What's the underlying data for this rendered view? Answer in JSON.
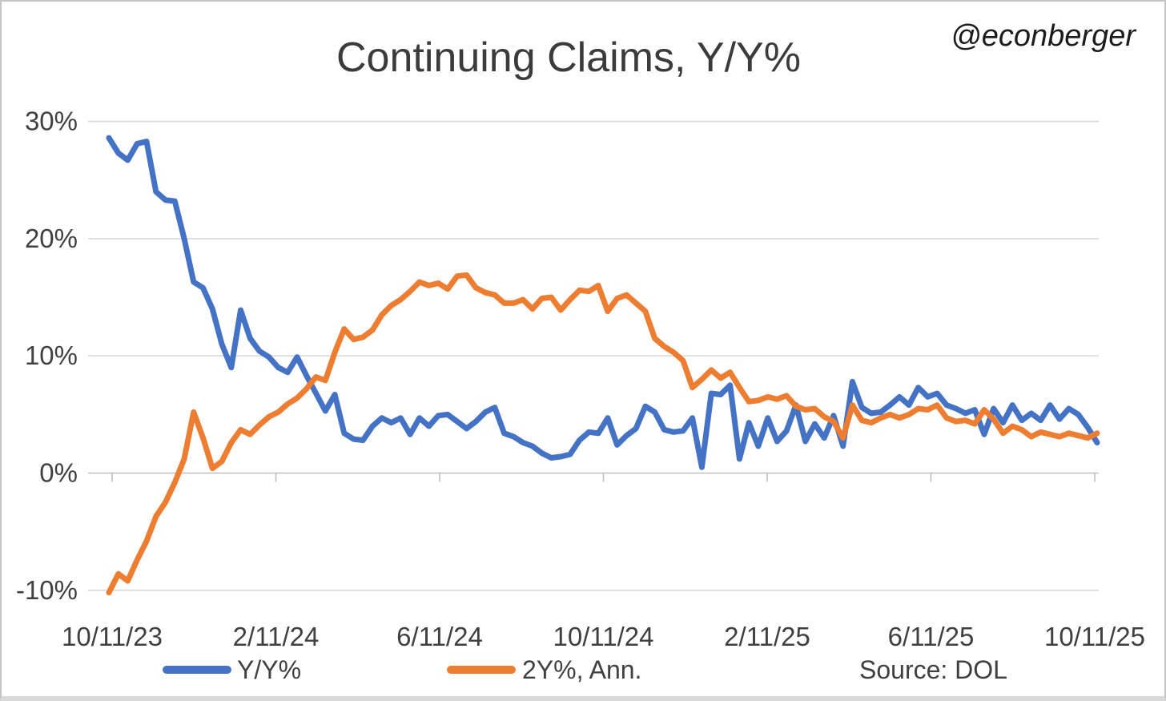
{
  "title": "Continuing Claims, Y/Y%",
  "watermark": "@econberger",
  "source_note": "Source: DOL",
  "colors": {
    "series_yy": "#4472C4",
    "series_2y": "#ED7D31",
    "gridline": "#D9D9D9",
    "zero_axis": "#BFBFBF",
    "text": "#404040",
    "title_text": "#3B3B3B",
    "background": "#FFFFFF",
    "frame_border": "#C6C5C4"
  },
  "chart_data": {
    "type": "line",
    "title": "Continuing Claims, Y/Y%",
    "xlabel": "",
    "ylabel": "",
    "x_unit": "weekly observations from 10/11/23 to 10/11/25",
    "x_axis": {
      "tick_labels": [
        "10/11/23",
        "2/11/24",
        "6/11/24",
        "10/11/24",
        "2/11/25",
        "6/11/25",
        "10/11/25"
      ]
    },
    "y_axis": {
      "tick_labels": [
        "30%",
        "20%",
        "10%",
        "0%",
        "-10%"
      ],
      "tick_values": [
        30,
        20,
        10,
        0,
        -10
      ],
      "ylim": [
        -10,
        30
      ],
      "format": "percent"
    },
    "grid": "horizontal",
    "legend_position": "bottom",
    "series": [
      {
        "name": "Y/Y%",
        "color": "#4472C4",
        "values": [
          28.6,
          27.3,
          26.7,
          28.1,
          28.3,
          24.0,
          23.3,
          23.2,
          20.0,
          16.3,
          15.8,
          14.0,
          11.0,
          9.0,
          13.9,
          11.5,
          10.4,
          9.9,
          9.0,
          8.6,
          9.9,
          8.3,
          6.8,
          5.3,
          6.7,
          3.4,
          2.9,
          2.8,
          4.0,
          4.7,
          4.3,
          4.7,
          3.3,
          4.7,
          4.0,
          4.9,
          5.0,
          4.4,
          3.8,
          4.4,
          5.2,
          5.6,
          3.4,
          3.1,
          2.6,
          2.3,
          1.7,
          1.3,
          1.4,
          1.6,
          2.8,
          3.5,
          3.4,
          4.7,
          2.4,
          3.2,
          3.8,
          5.7,
          5.2,
          3.7,
          3.5,
          3.6,
          4.7,
          0.5,
          6.8,
          6.7,
          7.5,
          1.2,
          4.3,
          2.3,
          4.7,
          2.7,
          3.6,
          5.8,
          2.7,
          4.2,
          3.0,
          4.9,
          2.3,
          7.8,
          5.6,
          5.1,
          5.2,
          5.8,
          6.5,
          5.8,
          7.3,
          6.5,
          6.8,
          5.8,
          5.5,
          5.1,
          5.4,
          3.3,
          5.5,
          4.3,
          5.8,
          4.5,
          5.1,
          4.5,
          5.8,
          4.6,
          5.5,
          5.0,
          3.9,
          2.6
        ]
      },
      {
        "name": "2Y%, Ann.",
        "color": "#ED7D31",
        "values": [
          -10.2,
          -8.6,
          -9.2,
          -7.4,
          -5.8,
          -3.7,
          -2.5,
          -0.8,
          1.2,
          5.2,
          3.0,
          0.4,
          1.0,
          2.6,
          3.7,
          3.3,
          4.1,
          4.8,
          5.2,
          5.9,
          6.4,
          7.2,
          8.2,
          7.9,
          10.3,
          12.3,
          11.4,
          11.6,
          12.2,
          13.5,
          14.3,
          14.8,
          15.5,
          16.3,
          16.0,
          16.2,
          15.7,
          16.8,
          16.9,
          15.8,
          15.4,
          15.2,
          14.5,
          14.5,
          14.8,
          14.0,
          14.9,
          15.0,
          13.9,
          14.8,
          15.6,
          15.5,
          16.0,
          13.8,
          14.9,
          15.2,
          14.5,
          13.8,
          11.5,
          10.8,
          10.3,
          9.6,
          7.3,
          8.0,
          8.8,
          8.1,
          8.6,
          7.3,
          6.1,
          6.2,
          6.5,
          6.3,
          6.6,
          5.7,
          5.4,
          5.5,
          4.8,
          4.4,
          3.0,
          5.8,
          4.5,
          4.3,
          4.7,
          5.0,
          4.7,
          5.0,
          5.5,
          5.4,
          5.8,
          4.7,
          4.4,
          4.5,
          4.2,
          5.4,
          4.6,
          3.4,
          4.0,
          3.7,
          3.1,
          3.5,
          3.3,
          3.1,
          3.4,
          3.2,
          3.0,
          3.4
        ]
      }
    ]
  }
}
